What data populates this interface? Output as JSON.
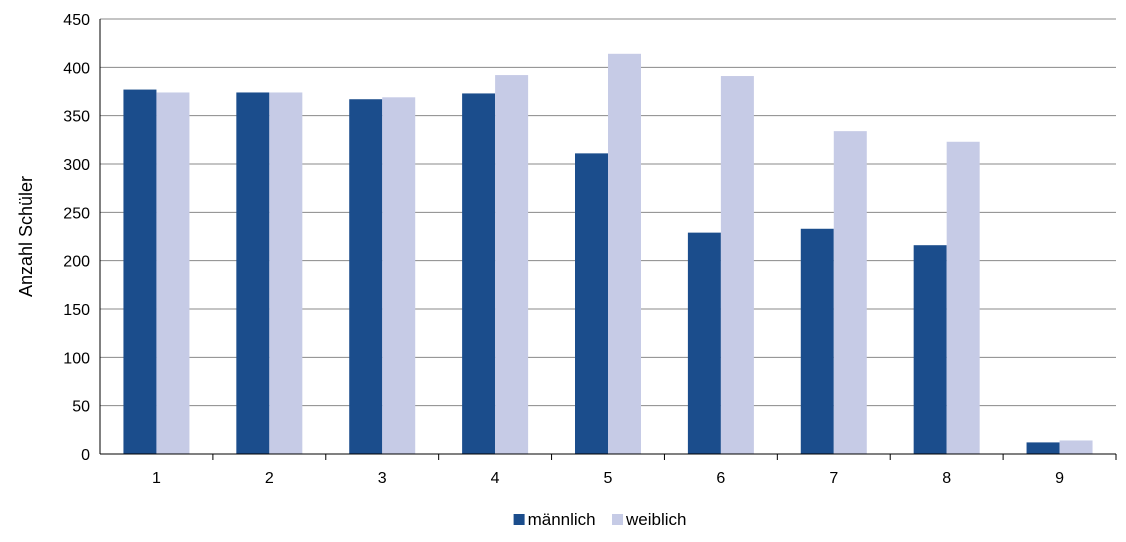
{
  "chart_data": {
    "type": "bar",
    "categories": [
      "1",
      "2",
      "3",
      "4",
      "5",
      "6",
      "7",
      "8",
      "9"
    ],
    "series": [
      {
        "name": "männlich",
        "color": "#1b4d8c",
        "values": [
          377,
          374,
          367,
          373,
          311,
          229,
          233,
          216,
          12
        ]
      },
      {
        "name": "weiblich",
        "color": "#c6cbe6",
        "values": [
          374,
          374,
          369,
          392,
          414,
          391,
          334,
          323,
          14
        ]
      }
    ],
    "ylabel": "Anzahl Schüler",
    "xlabel": "",
    "ylim": [
      0,
      450
    ],
    "yticks": [
      0,
      50,
      100,
      150,
      200,
      250,
      300,
      350,
      400,
      450
    ],
    "grid": true,
    "legend_position": "bottom"
  }
}
